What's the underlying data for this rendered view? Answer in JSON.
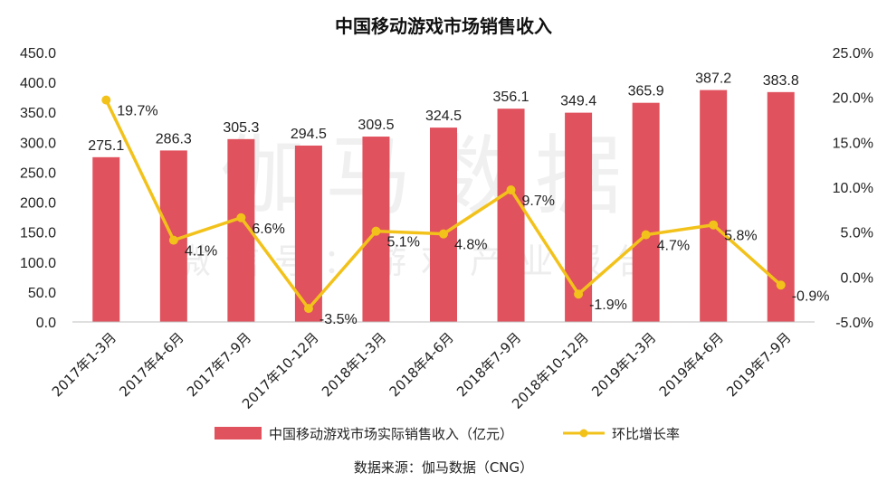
{
  "chart_data": {
    "type": "bar",
    "title": "中国移动游戏市场销售收入",
    "categories": [
      "2017年1-3月",
      "2017年4-6月",
      "2017年7-9月",
      "2017年10-12月",
      "2018年1-3月",
      "2018年4-6月",
      "2018年7-9月",
      "2018年10-12月",
      "2019年1-3月",
      "2019年4-6月",
      "2019年7-9月"
    ],
    "series": [
      {
        "name": "中国移动游戏市场实际销售收入（亿元）",
        "type": "bar",
        "axis": "left",
        "color": "#e0525d",
        "values": [
          275.1,
          286.3,
          305.3,
          294.5,
          309.5,
          324.5,
          356.1,
          349.4,
          365.9,
          387.2,
          383.8
        ],
        "labels": [
          "275.1",
          "286.3",
          "305.3",
          "294.5",
          "309.5",
          "324.5",
          "356.1",
          "349.4",
          "365.9",
          "387.2",
          "383.8"
        ]
      },
      {
        "name": "环比增长率",
        "type": "line",
        "axis": "right",
        "color": "#f2c21b",
        "values": [
          19.7,
          4.1,
          6.6,
          -3.5,
          5.1,
          4.8,
          9.7,
          -1.9,
          4.7,
          5.8,
          -0.9
        ],
        "labels": [
          "19.7%",
          "4.1%",
          "6.6%",
          "-3.5%",
          "5.1%",
          "4.8%",
          "9.7%",
          "-1.9%",
          "4.7%",
          "5.8%",
          "-0.9%"
        ]
      }
    ],
    "y_left": {
      "range": [
        0,
        450
      ],
      "ticks": [
        "0.0",
        "50.0",
        "100.0",
        "150.0",
        "200.0",
        "250.0",
        "300.0",
        "350.0",
        "400.0",
        "450.0"
      ]
    },
    "y_right": {
      "range": [
        -5,
        25
      ],
      "ticks": [
        "-5.0%",
        "0.0%",
        "5.0%",
        "10.0%",
        "15.0%",
        "20.0%",
        "25.0%"
      ]
    },
    "grid": false,
    "legend_position": "bottom",
    "source": "数据来源：伽马数据（CNG）",
    "watermark": [
      "伽马数据",
      "微信号：游戏产业报告"
    ]
  }
}
